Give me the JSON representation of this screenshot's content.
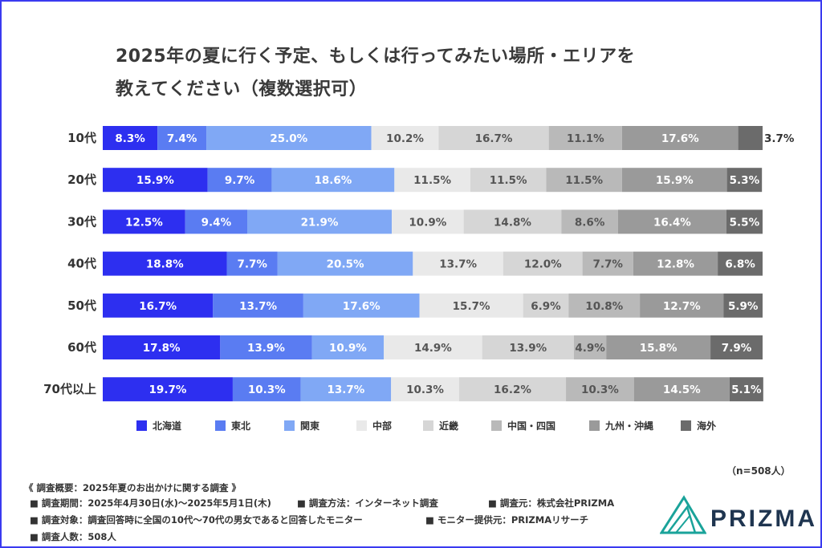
{
  "title_line1": "2025年の夏に行く予定、もしくは行ってみたい場所・エリアを",
  "title_line2": "教えてください（複数選択可）",
  "sample_note": "（n=508人）",
  "footer": {
    "heading": "《 調査概要：2025年夏のお出かけに関する調査 》",
    "period": "■ 調査期間：2025年4月30日(水)〜2025年5月1日(木)",
    "method": "■ 調査方法：インターネット調査",
    "source": "■ 調査元：株式会社PRIZMA",
    "target": "■ 調査対象：調査回答時に全国の10代〜70代の男女であると回答したモニター",
    "provider": "■ モニター提供元：PRIZMAリサーチ",
    "count": "■ 調査人数：508人"
  },
  "logo": "PRIZMA",
  "chart_data": {
    "type": "bar",
    "orientation": "horizontal",
    "stacked": "100%",
    "categories": [
      "10代",
      "20代",
      "30代",
      "40代",
      "50代",
      "60代",
      "70代以上"
    ],
    "series": [
      {
        "name": "北海道",
        "color": "#2d2ff0",
        "values": [
          8.3,
          15.9,
          12.5,
          18.8,
          16.7,
          17.8,
          19.7
        ],
        "labels": [
          "8.3%",
          "15.9%",
          "12.5%",
          "18.8%",
          "16.7%",
          "17.8%",
          "19.7%"
        ]
      },
      {
        "name": "東北",
        "color": "#5a7cf2",
        "values": [
          7.4,
          9.7,
          9.4,
          7.7,
          13.7,
          13.9,
          10.3
        ],
        "labels": [
          "7.4%",
          "9.7%",
          "9.4%",
          "7.7%",
          "13.7%",
          "13.9%",
          "10.3%"
        ]
      },
      {
        "name": "関東",
        "color": "#80a8f5",
        "values": [
          25.0,
          18.6,
          21.9,
          20.5,
          17.6,
          10.9,
          13.7
        ],
        "labels": [
          "25.0%",
          "18.6%",
          "21.9%",
          "20.5%",
          "17.6%",
          "10.9%",
          "13.7%"
        ]
      },
      {
        "name": "中部",
        "color": "#e9e9e9",
        "values": [
          10.2,
          11.5,
          10.9,
          13.7,
          15.7,
          14.9,
          10.3
        ],
        "labels": [
          "10.2%",
          "11.5%",
          "10.9%",
          "13.7%",
          "15.7%",
          "14.9%",
          "10.3%"
        ]
      },
      {
        "name": "近畿",
        "color": "#d6d6d6",
        "values": [
          16.7,
          11.5,
          14.8,
          12.0,
          6.9,
          13.9,
          16.2
        ],
        "labels": [
          "16.7%",
          "11.5%",
          "14.8%",
          "12.0%",
          "6.9%",
          "13.9%",
          "16.2%"
        ]
      },
      {
        "name": "中国・四国",
        "color": "#b9b9b9",
        "values": [
          11.1,
          11.5,
          8.6,
          7.7,
          10.8,
          4.9,
          10.3
        ],
        "labels": [
          "11.1%",
          "11.5%",
          "8.6%",
          "7.7%",
          "10.8%",
          "4.9%",
          "10.3%"
        ]
      },
      {
        "name": "九州・沖縄",
        "color": "#9a9a9a",
        "values": [
          17.6,
          15.9,
          16.4,
          12.8,
          12.7,
          15.8,
          14.5
        ],
        "labels": [
          "17.6%",
          "15.9%",
          "16.4%",
          "12.8%",
          "12.7%",
          "15.8%",
          "14.5%"
        ]
      },
      {
        "name": "海外",
        "color": "#6b6b6b",
        "values": [
          3.7,
          5.3,
          5.5,
          6.8,
          5.9,
          7.9,
          5.1
        ],
        "labels": [
          "3.7%",
          "5.3%",
          "5.5%",
          "6.8%",
          "5.9%",
          "7.9%",
          "5.1%"
        ]
      }
    ],
    "xlim": [
      0,
      100
    ],
    "legend_position": "bottom",
    "grid": false
  }
}
